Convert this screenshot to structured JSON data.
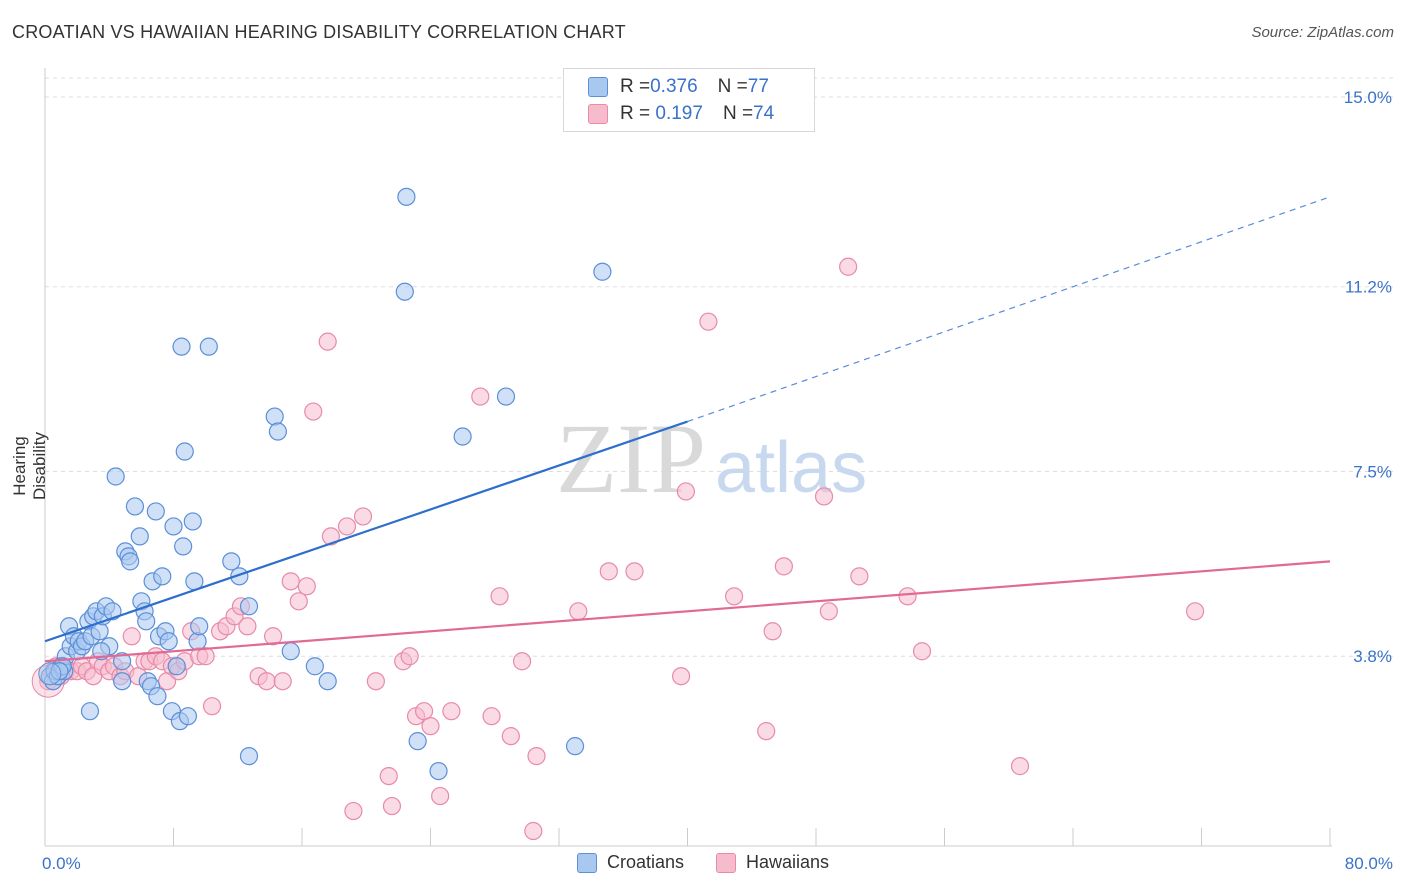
{
  "title": "CROATIAN VS HAWAIIAN HEARING DISABILITY CORRELATION CHART",
  "source": "Source: ZipAtlas.com",
  "watermark": {
    "zip": "ZIP",
    "atlas": "atlas"
  },
  "legend_top": [
    {
      "r_label": "R = ",
      "r_value": "0.376",
      "n_label": "N = ",
      "n_value": "77"
    },
    {
      "r_label": "R = ",
      "r_value": " 0.197",
      "n_label": "N = ",
      "n_value": "74"
    }
  ],
  "legend_bottom": [
    "Croatians",
    "Hawaiians"
  ],
  "colors": {
    "croatians_fill": "#a9c8f0",
    "croatians_stroke": "#5b8fd8",
    "croatians_line": "#2f6fcc",
    "hawaiians_fill": "#f6bccd",
    "hawaiians_stroke": "#e88aa8",
    "hawaiians_line": "#e06a94",
    "tick_label": "#3a72c9",
    "grid": "#dddddd"
  },
  "chart_data": {
    "type": "scatter",
    "title": "CROATIAN VS HAWAIIAN HEARING DISABILITY CORRELATION CHART",
    "xlabel": "",
    "ylabel": "Hearing Disability",
    "xlim": [
      0,
      80
    ],
    "ylim": [
      0,
      15.5
    ],
    "x_tick_labels": [
      "0.0%",
      "80.0%"
    ],
    "y_ticks": [
      3.8,
      7.5,
      11.2,
      15.0
    ],
    "y_tick_labels": [
      "3.8%",
      "7.5%",
      "11.2%",
      "15.0%"
    ],
    "grid": "horizontal dashed",
    "legend_placement": "top-center and bottom",
    "series": [
      {
        "name": "Croatians",
        "r": 0.376,
        "n": 77,
        "trend": {
          "x0": 0,
          "y0": 4.1,
          "x1": 40,
          "y1": 8.5,
          "dashed_to_x": 80,
          "dashed_to_y": 13.0
        },
        "points": [
          [
            0.3,
            3.4
          ],
          [
            0.5,
            3.3
          ],
          [
            0.6,
            3.5
          ],
          [
            0.8,
            3.4
          ],
          [
            1.0,
            3.6
          ],
          [
            1.2,
            3.5
          ],
          [
            1.3,
            3.8
          ],
          [
            1.5,
            4.4
          ],
          [
            1.6,
            4.0
          ],
          [
            1.8,
            4.2
          ],
          [
            2.0,
            3.9
          ],
          [
            2.1,
            4.1
          ],
          [
            2.3,
            4.0
          ],
          [
            2.5,
            4.1
          ],
          [
            2.7,
            4.5
          ],
          [
            2.9,
            4.2
          ],
          [
            3.0,
            4.6
          ],
          [
            3.2,
            4.7
          ],
          [
            3.4,
            4.3
          ],
          [
            3.6,
            4.6
          ],
          [
            3.8,
            4.8
          ],
          [
            4.0,
            4.0
          ],
          [
            4.2,
            4.7
          ],
          [
            4.4,
            7.4
          ],
          [
            4.8,
            3.7
          ],
          [
            5.0,
            5.9
          ],
          [
            5.2,
            5.8
          ],
          [
            5.3,
            5.7
          ],
          [
            5.6,
            6.8
          ],
          [
            5.9,
            6.2
          ],
          [
            6.0,
            4.9
          ],
          [
            6.2,
            4.7
          ],
          [
            6.3,
            4.5
          ],
          [
            6.4,
            3.3
          ],
          [
            6.6,
            3.2
          ],
          [
            6.7,
            5.3
          ],
          [
            6.9,
            6.7
          ],
          [
            7.0,
            3.0
          ],
          [
            7.1,
            4.2
          ],
          [
            7.3,
            5.4
          ],
          [
            7.5,
            4.3
          ],
          [
            7.7,
            4.1
          ],
          [
            7.9,
            2.7
          ],
          [
            8.0,
            6.4
          ],
          [
            8.2,
            3.6
          ],
          [
            8.4,
            2.5
          ],
          [
            8.6,
            6.0
          ],
          [
            8.7,
            7.9
          ],
          [
            8.9,
            2.6
          ],
          [
            9.2,
            6.5
          ],
          [
            9.3,
            5.3
          ],
          [
            9.5,
            4.1
          ],
          [
            9.6,
            4.4
          ],
          [
            8.5,
            10.0
          ],
          [
            10.2,
            10.0
          ],
          [
            11.6,
            5.7
          ],
          [
            12.1,
            5.4
          ],
          [
            12.7,
            4.8
          ],
          [
            12.7,
            1.8
          ],
          [
            14.3,
            8.6
          ],
          [
            14.5,
            8.3
          ],
          [
            15.3,
            3.9
          ],
          [
            16.8,
            3.6
          ],
          [
            17.6,
            3.3
          ],
          [
            22.5,
            13.0
          ],
          [
            22.4,
            11.1
          ],
          [
            23.2,
            2.1
          ],
          [
            24.5,
            1.5
          ],
          [
            26.0,
            8.2
          ],
          [
            28.7,
            9.0
          ],
          [
            33.0,
            2.0
          ],
          [
            34.7,
            11.5
          ],
          [
            2.8,
            2.7
          ],
          [
            4.8,
            3.3
          ],
          [
            1.1,
            3.6
          ],
          [
            0.9,
            3.5
          ],
          [
            3.5,
            3.9
          ]
        ]
      },
      {
        "name": "Hawaiians",
        "r": 0.197,
        "n": 74,
        "trend": {
          "x0": 0,
          "y0": 3.7,
          "x1": 80,
          "y1": 5.7
        },
        "points": [
          [
            0.2,
            3.3
          ],
          [
            0.5,
            3.5
          ],
          [
            0.7,
            3.6
          ],
          [
            1.0,
            3.4
          ],
          [
            1.3,
            3.5
          ],
          [
            1.6,
            3.5
          ],
          [
            2.0,
            3.5
          ],
          [
            2.3,
            3.6
          ],
          [
            2.6,
            3.5
          ],
          [
            3.0,
            3.4
          ],
          [
            3.3,
            3.7
          ],
          [
            3.6,
            3.6
          ],
          [
            4.0,
            3.5
          ],
          [
            4.3,
            3.6
          ],
          [
            4.7,
            3.4
          ],
          [
            5.0,
            3.5
          ],
          [
            5.4,
            4.2
          ],
          [
            5.8,
            3.4
          ],
          [
            6.2,
            3.7
          ],
          [
            6.5,
            3.7
          ],
          [
            6.9,
            3.8
          ],
          [
            7.3,
            3.7
          ],
          [
            7.6,
            3.3
          ],
          [
            7.9,
            3.6
          ],
          [
            8.3,
            3.5
          ],
          [
            8.7,
            3.7
          ],
          [
            9.1,
            4.3
          ],
          [
            9.6,
            3.8
          ],
          [
            10.0,
            3.8
          ],
          [
            10.4,
            2.8
          ],
          [
            10.9,
            4.3
          ],
          [
            11.3,
            4.4
          ],
          [
            11.8,
            4.6
          ],
          [
            12.2,
            4.8
          ],
          [
            12.6,
            4.4
          ],
          [
            13.3,
            3.4
          ],
          [
            13.8,
            3.3
          ],
          [
            14.2,
            4.2
          ],
          [
            14.8,
            3.3
          ],
          [
            15.3,
            5.3
          ],
          [
            15.8,
            4.9
          ],
          [
            16.3,
            5.2
          ],
          [
            16.7,
            8.7
          ],
          [
            17.6,
            10.1
          ],
          [
            17.8,
            6.2
          ],
          [
            18.8,
            6.4
          ],
          [
            19.2,
            0.7
          ],
          [
            19.8,
            6.6
          ],
          [
            20.6,
            3.3
          ],
          [
            21.4,
            1.4
          ],
          [
            21.6,
            0.8
          ],
          [
            22.3,
            3.7
          ],
          [
            22.7,
            3.8
          ],
          [
            23.1,
            2.6
          ],
          [
            23.6,
            2.7
          ],
          [
            24.0,
            2.4
          ],
          [
            24.6,
            1.0
          ],
          [
            25.3,
            2.7
          ],
          [
            27.1,
            9.0
          ],
          [
            27.8,
            2.6
          ],
          [
            28.3,
            5.0
          ],
          [
            29.0,
            2.2
          ],
          [
            29.7,
            3.7
          ],
          [
            30.6,
            1.8
          ],
          [
            30.4,
            0.3
          ],
          [
            33.2,
            4.7
          ],
          [
            35.1,
            5.5
          ],
          [
            36.7,
            5.5
          ],
          [
            39.6,
            3.4
          ],
          [
            39.9,
            7.1
          ],
          [
            41.3,
            10.5
          ],
          [
            42.9,
            5.0
          ],
          [
            44.9,
            2.3
          ],
          [
            45.3,
            4.3
          ]
        ],
        "extra_points": [
          [
            46.0,
            5.6
          ],
          [
            48.5,
            7.0
          ],
          [
            48.8,
            4.7
          ],
          [
            50.0,
            11.6
          ],
          [
            50.7,
            5.4
          ],
          [
            53.7,
            5.0
          ],
          [
            54.6,
            3.9
          ],
          [
            60.7,
            1.6
          ],
          [
            71.6,
            4.7
          ]
        ]
      }
    ]
  }
}
